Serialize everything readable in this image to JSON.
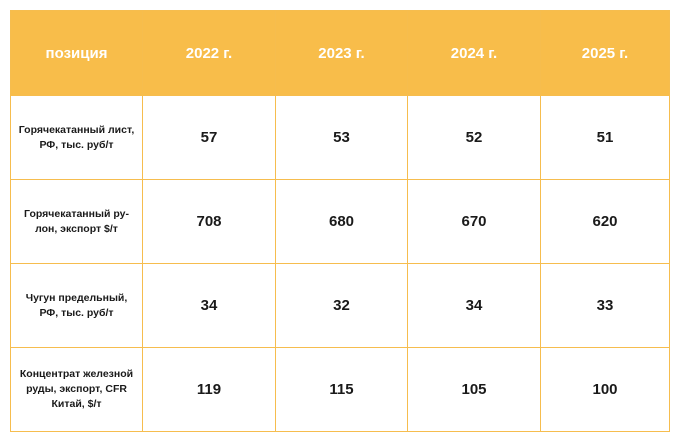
{
  "table": {
    "headers": [
      "позиция",
      "2022 г.",
      "2023 г.",
      "2024 г.",
      "2025 г."
    ],
    "rows": [
      {
        "label_lines": [
          "Горячекатанный лист,",
          "РФ, тыс. руб/т"
        ],
        "values": [
          "57",
          "53",
          "52",
          "51"
        ]
      },
      {
        "label_lines": [
          "Горячекатанный ру-",
          "лон, экспорт $/т"
        ],
        "values": [
          "708",
          "680",
          "670",
          "620"
        ]
      },
      {
        "label_lines": [
          "Чугун предельный,",
          "РФ, тыс. руб/т"
        ],
        "values": [
          "34",
          "32",
          "34",
          "33"
        ]
      },
      {
        "label_lines": [
          "Концентрат железной",
          "руды, экспорт, CFR",
          "Китай, $/т"
        ],
        "values": [
          "119",
          "115",
          "105",
          "100"
        ]
      }
    ]
  },
  "colors": {
    "header_bg": "#f8bd4a",
    "border": "#f6bd4e",
    "header_text": "#ffffff",
    "body_text": "#1a1a1a"
  }
}
